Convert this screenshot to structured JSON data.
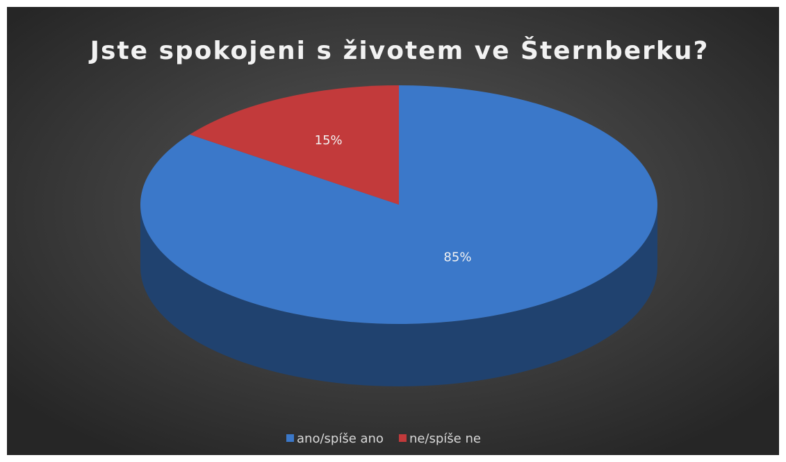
{
  "chart_data": {
    "type": "pie3d",
    "title": "Jste spokojeni s životem ve Šternberku?",
    "categories": [
      "ano/spíše ano",
      "ne/spíše ne"
    ],
    "values": [
      85,
      15
    ],
    "value_labels": [
      "85%",
      "15%"
    ],
    "colors": [
      "#3b78c9",
      "#c23a3b"
    ],
    "legend": "bottom"
  }
}
